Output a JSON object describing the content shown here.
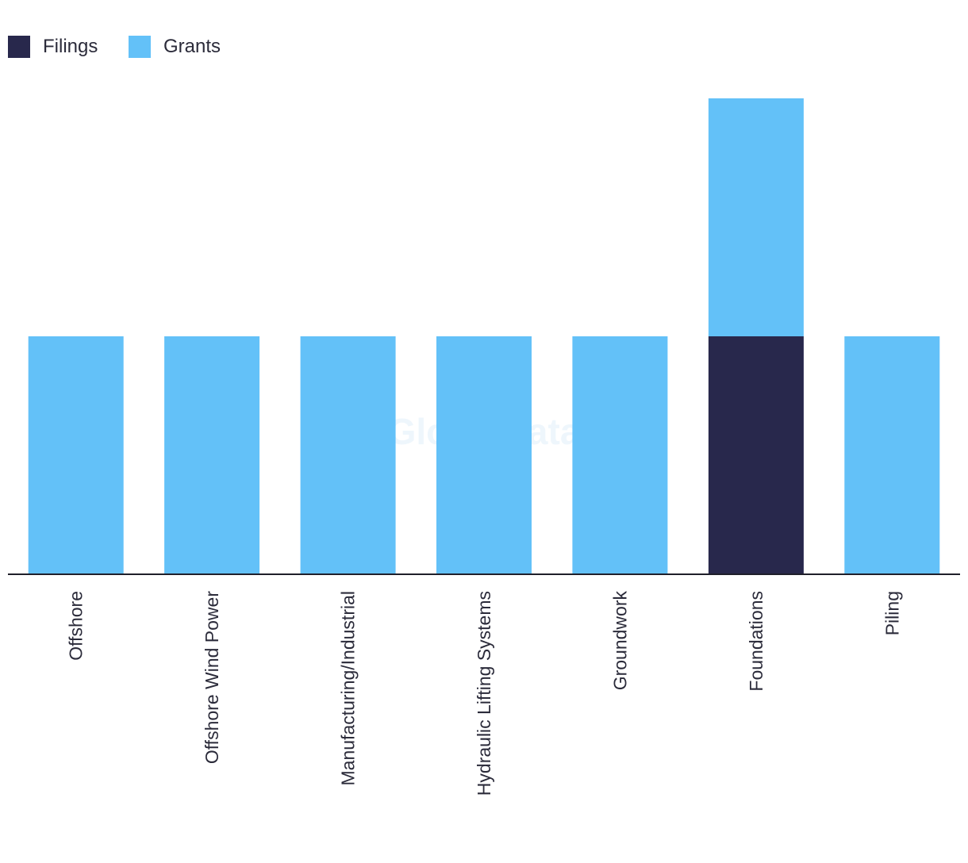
{
  "chart_data": {
    "type": "bar",
    "stacked": true,
    "categories": [
      "Offshore",
      "Offshore Wind Power",
      "Manufacturing/Industrial",
      "Hydraulic Lifting Systems",
      "Groundwork",
      "Foundations",
      "Piling"
    ],
    "series": [
      {
        "name": "Filings",
        "color": "#28284c",
        "values": [
          0,
          0,
          0,
          0,
          0,
          1,
          0
        ]
      },
      {
        "name": "Grants",
        "color": "#63c1f8",
        "values": [
          1,
          1,
          1,
          1,
          1,
          1,
          1
        ]
      }
    ],
    "ylim": [
      0,
      2
    ],
    "grid": false,
    "legend_position": "top-left",
    "watermark": "GlobalData"
  }
}
